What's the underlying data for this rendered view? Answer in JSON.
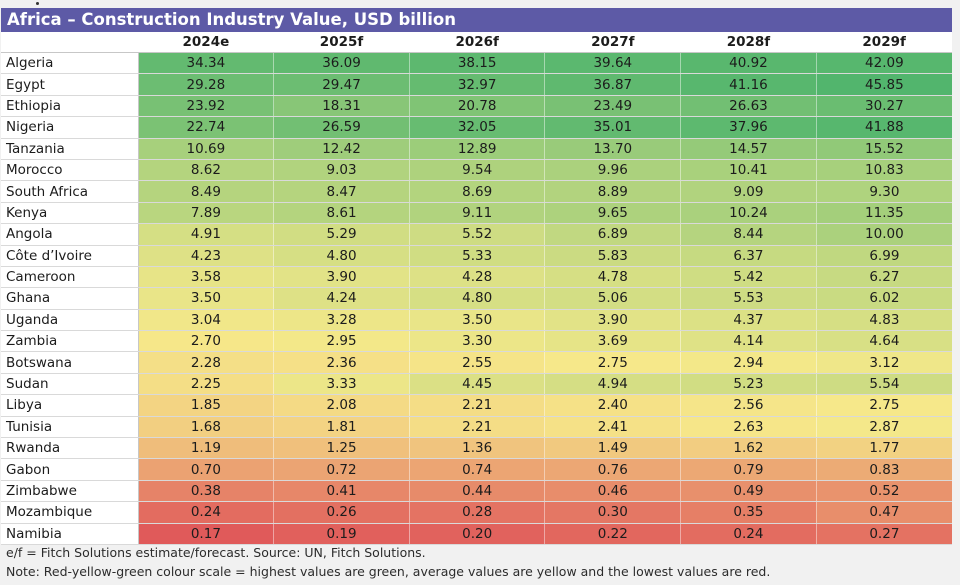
{
  "title": "Africa – Construction Industry Value, USD billion",
  "chart_data": {
    "type": "table",
    "title": "Africa – Construction Industry Value, USD billion",
    "columns": [
      "2024e",
      "2025f",
      "2026f",
      "2027f",
      "2028f",
      "2029f"
    ],
    "rows": [
      {
        "country": "Algeria",
        "values": [
          "34.34",
          "36.09",
          "38.15",
          "39.64",
          "40.92",
          "42.09"
        ]
      },
      {
        "country": "Egypt",
        "values": [
          "29.28",
          "29.47",
          "32.97",
          "36.87",
          "41.16",
          "45.85"
        ]
      },
      {
        "country": "Ethiopia",
        "values": [
          "23.92",
          "18.31",
          "20.78",
          "23.49",
          "26.63",
          "30.27"
        ]
      },
      {
        "country": "Nigeria",
        "values": [
          "22.74",
          "26.59",
          "32.05",
          "35.01",
          "37.96",
          "41.88"
        ]
      },
      {
        "country": "Tanzania",
        "values": [
          "10.69",
          "12.42",
          "12.89",
          "13.70",
          "14.57",
          "15.52"
        ]
      },
      {
        "country": "Morocco",
        "values": [
          "8.62",
          "9.03",
          "9.54",
          "9.96",
          "10.41",
          "10.83"
        ]
      },
      {
        "country": "South Africa",
        "values": [
          "8.49",
          "8.47",
          "8.69",
          "8.89",
          "9.09",
          "9.30"
        ]
      },
      {
        "country": "Kenya",
        "values": [
          "7.89",
          "8.61",
          "9.11",
          "9.65",
          "10.24",
          "11.35"
        ]
      },
      {
        "country": "Angola",
        "values": [
          "4.91",
          "5.29",
          "5.52",
          "6.89",
          "8.44",
          "10.00"
        ]
      },
      {
        "country": "Côte d’Ivoire",
        "values": [
          "4.23",
          "4.80",
          "5.33",
          "5.83",
          "6.37",
          "6.99"
        ]
      },
      {
        "country": "Cameroon",
        "values": [
          "3.58",
          "3.90",
          "4.28",
          "4.78",
          "5.42",
          "6.27"
        ]
      },
      {
        "country": "Ghana",
        "values": [
          "3.50",
          "4.24",
          "4.80",
          "5.06",
          "5.53",
          "6.02"
        ]
      },
      {
        "country": "Uganda",
        "values": [
          "3.04",
          "3.28",
          "3.50",
          "3.90",
          "4.37",
          "4.83"
        ]
      },
      {
        "country": "Zambia",
        "values": [
          "2.70",
          "2.95",
          "3.30",
          "3.69",
          "4.14",
          "4.64"
        ]
      },
      {
        "country": "Botswana",
        "values": [
          "2.28",
          "2.36",
          "2.55",
          "2.75",
          "2.94",
          "3.12"
        ]
      },
      {
        "country": "Sudan",
        "values": [
          "2.25",
          "3.33",
          "4.45",
          "4.94",
          "5.23",
          "5.54"
        ]
      },
      {
        "country": "Libya",
        "values": [
          "1.85",
          "2.08",
          "2.21",
          "2.40",
          "2.56",
          "2.75"
        ]
      },
      {
        "country": "Tunisia",
        "values": [
          "1.68",
          "1.81",
          "2.21",
          "2.41",
          "2.63",
          "2.87"
        ]
      },
      {
        "country": "Rwanda",
        "values": [
          "1.19",
          "1.25",
          "1.36",
          "1.49",
          "1.62",
          "1.77"
        ]
      },
      {
        "country": "Gabon",
        "values": [
          "0.70",
          "0.72",
          "0.74",
          "0.76",
          "0.79",
          "0.83"
        ]
      },
      {
        "country": "Zimbabwe",
        "values": [
          "0.38",
          "0.41",
          "0.44",
          "0.46",
          "0.49",
          "0.52"
        ]
      },
      {
        "country": "Mozambique",
        "values": [
          "0.24",
          "0.26",
          "0.28",
          "0.30",
          "0.35",
          "0.47"
        ]
      },
      {
        "country": "Namibia",
        "values": [
          "0.17",
          "0.19",
          "0.20",
          "0.22",
          "0.24",
          "0.27"
        ]
      }
    ],
    "color_scale": {
      "low": "#e05a5a",
      "mid": "#f6e98a",
      "high": "#52b56d"
    }
  },
  "footnotes": {
    "source": "e/f = Fitch Solutions estimate/forecast. Source: UN, Fitch Solutions.",
    "note": "Note: Red-yellow-green colour scale = highest values are green, average values are yellow and the lowest values are red."
  },
  "colors": {
    "title_bar": "#5d5aa6",
    "title_text": "#ffffff",
    "background": "#f1f1f1"
  }
}
